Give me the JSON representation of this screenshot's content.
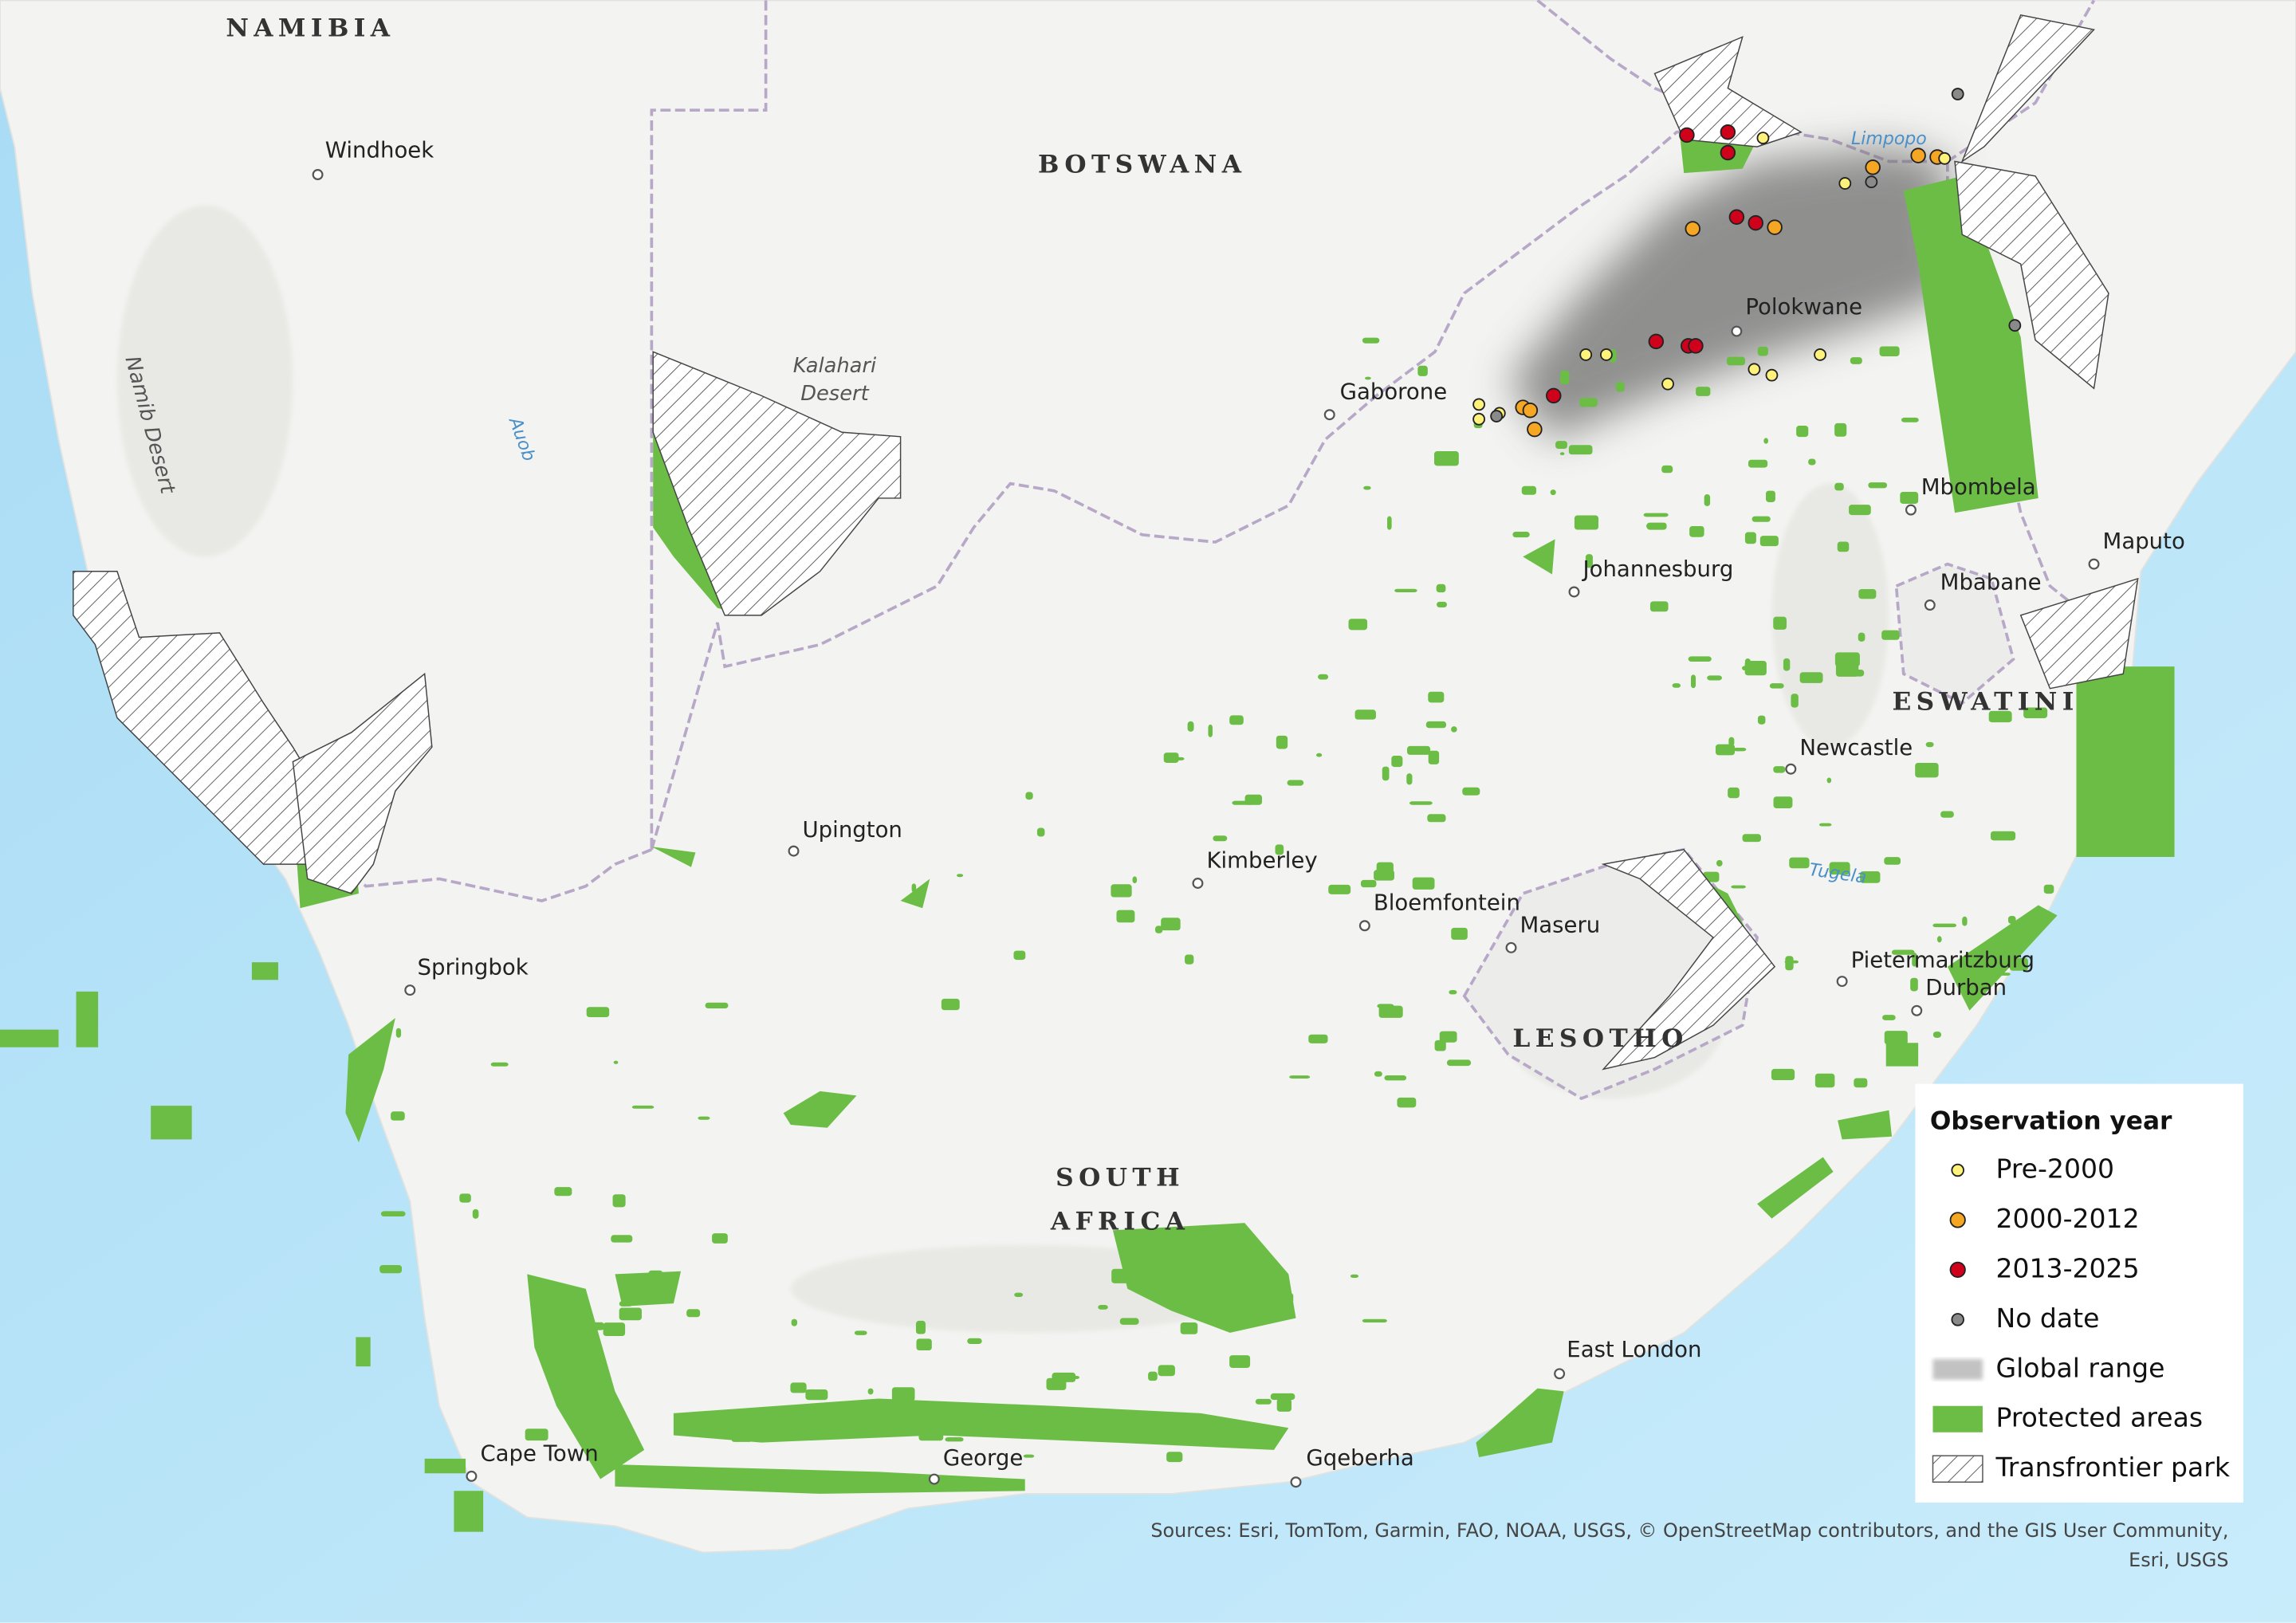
{
  "map": {
    "countries": [
      {
        "lines": [
          "NAMIBIA"
        ]
      },
      {
        "lines": [
          "BOTSWANA"
        ]
      },
      {
        "lines": [
          "SOUTH",
          "AFRICA"
        ]
      },
      {
        "lines": [
          "LESOTHO"
        ]
      },
      {
        "lines": [
          "ESWATINI"
        ]
      }
    ],
    "cities": [
      "Windhoek",
      "Gaborone",
      "Polokwane",
      "Mbombela",
      "Maputo",
      "Mbabane",
      "Johannesburg",
      "Newcastle",
      "Upington",
      "Kimberley",
      "Bloemfontein",
      "Maseru",
      "Pietermaritzburg",
      "Durban",
      "Springbok",
      "East London",
      "Cape Town",
      "George",
      "Gqeberha"
    ],
    "features": [
      {
        "lines": [
          "Kalahari",
          "Desert"
        ]
      },
      {
        "lines": [
          "Namib Desert"
        ]
      },
      {
        "lines": [
          "Auob"
        ]
      },
      {
        "lines": [
          "Limpopo"
        ]
      },
      {
        "lines": [
          "Tugela"
        ]
      }
    ],
    "legend": {
      "title": "Observation year",
      "items": [
        {
          "label": "Pre-2000",
          "color": "#fff27a"
        },
        {
          "label": "2000-2012",
          "color": "#f5a623"
        },
        {
          "label": "2013-2025",
          "color": "#d0021b"
        },
        {
          "label": "No date",
          "color": "#8a8a8a"
        },
        {
          "label": "Global range",
          "color": "#9a9a9a"
        },
        {
          "label": "Protected areas",
          "color": "#6cbd45"
        },
        {
          "label": "Transfrontier park",
          "color": "#555555"
        }
      ]
    },
    "sources": [
      "Sources: Esri, TomTom, Garmin, FAO, NOAA, USGS, © OpenStreetMap contributors, and the GIS User Community,",
      "Esri, USGS"
    ]
  }
}
